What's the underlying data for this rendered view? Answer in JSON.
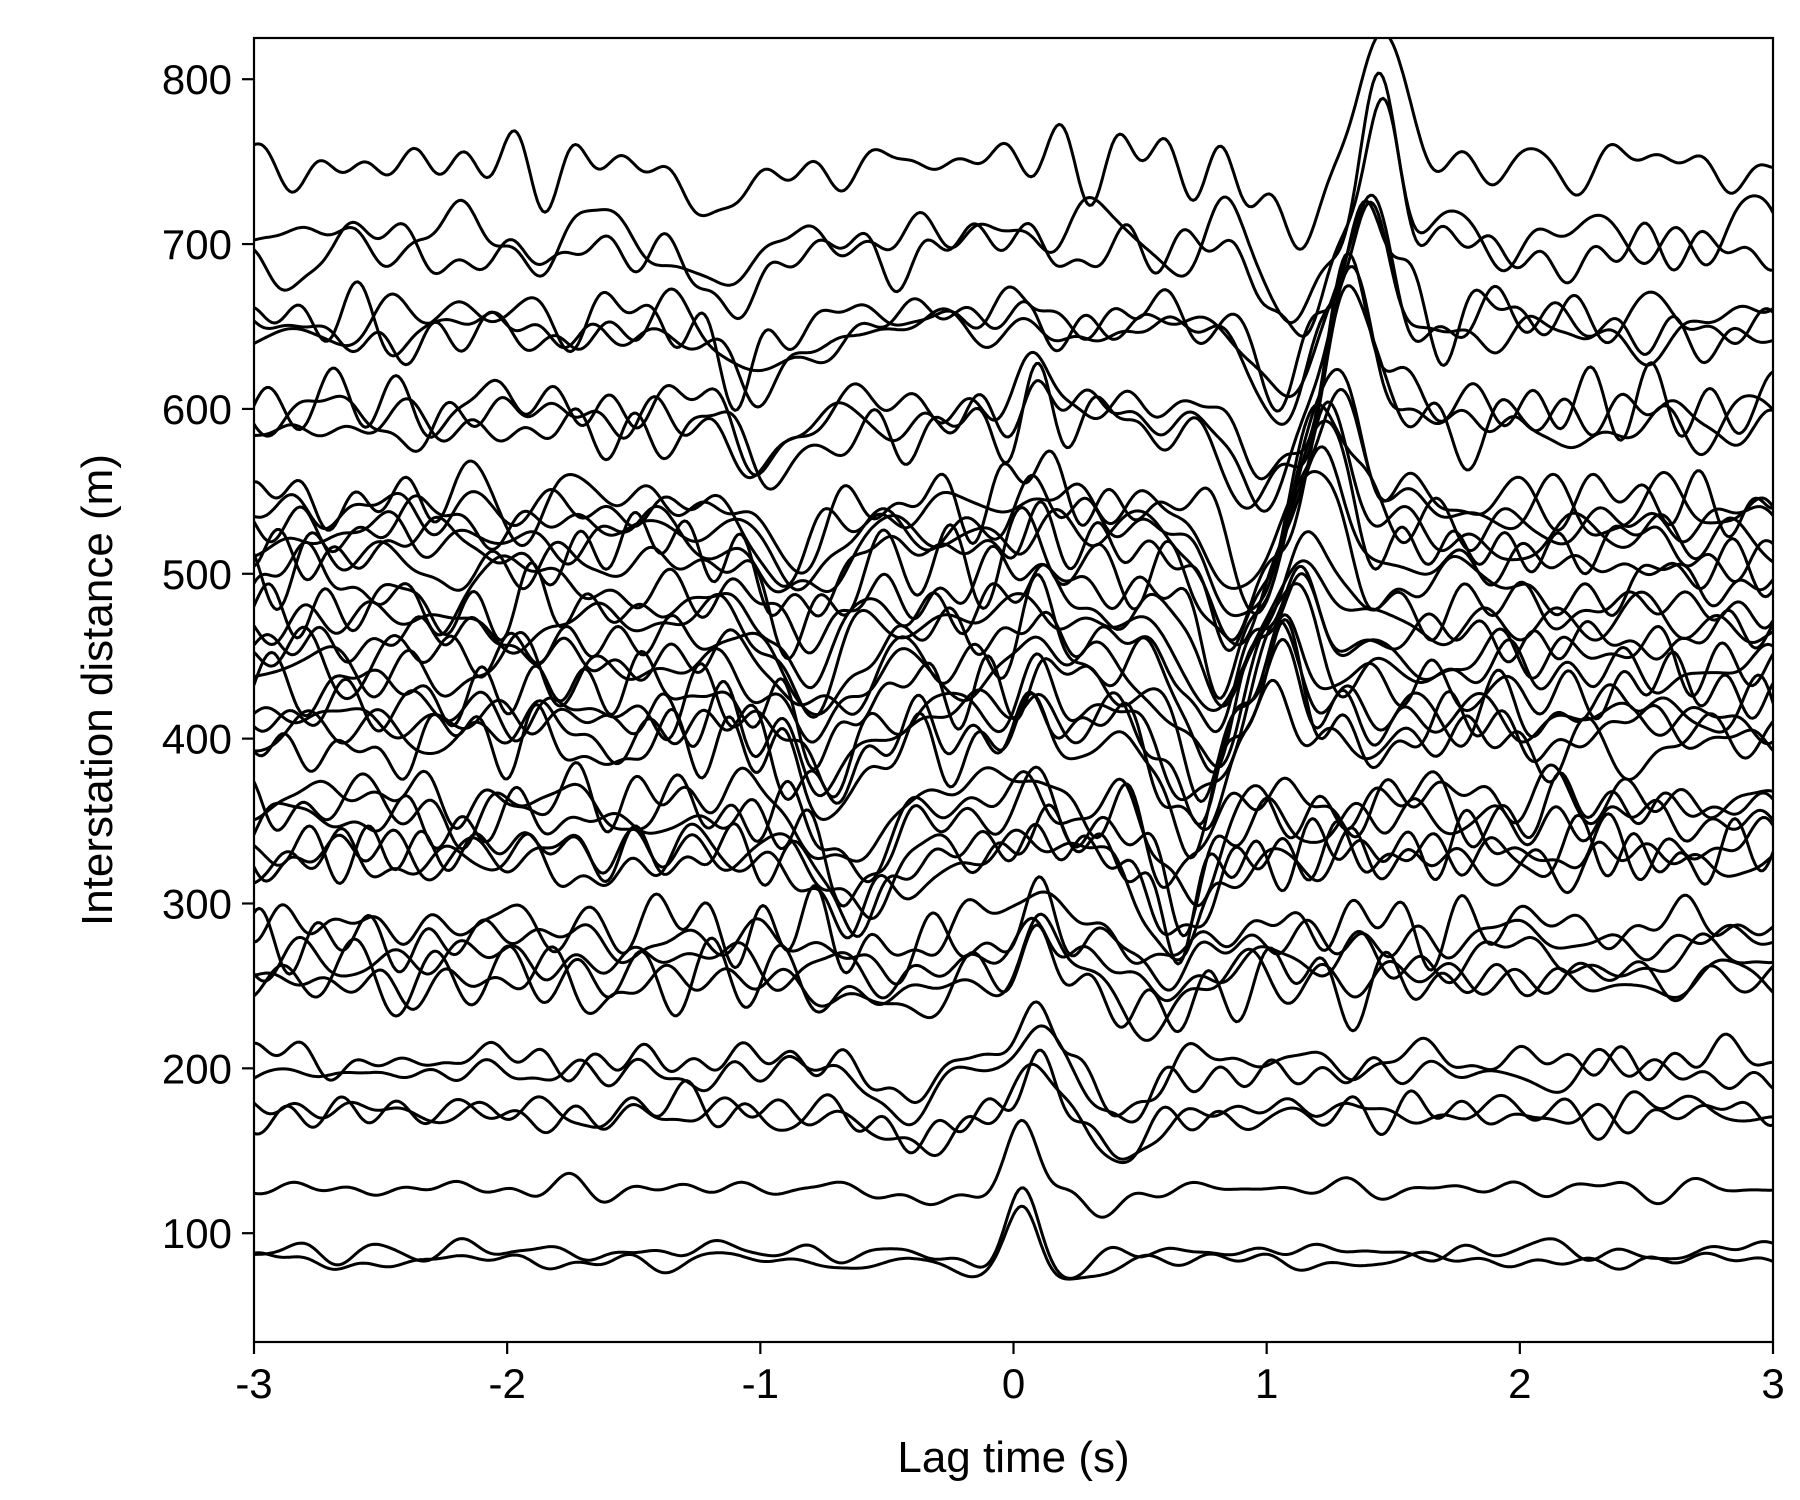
{
  "chart_data": {
    "type": "line",
    "title": "",
    "xlabel": "Lag time (s)",
    "ylabel": "Interstation distance (m)",
    "xlim": [
      -3,
      3
    ],
    "ylim": [
      34,
      825
    ],
    "x_ticks": [
      -3,
      -2,
      -1,
      0,
      1,
      2,
      3
    ],
    "x_tick_labels": [
      "-3",
      "-2",
      "-1",
      "0",
      "1",
      "2",
      "3"
    ],
    "y_ticks": [
      100,
      200,
      300,
      400,
      500,
      600,
      700,
      800
    ],
    "y_tick_labels": [
      "100",
      "200",
      "300",
      "400",
      "500",
      "600",
      "700",
      "800"
    ],
    "grid": false,
    "legend": "none",
    "line_color": "#000000",
    "description_of_waveforms": "Cross-correlation traces plotted at their interstation distance; a central peak near 0 s and troughs moving outward with distance (moveout about 1.1 s at 640 m on the positive side, about 0.9 s on the negative side).",
    "trace_distances_m": [
      83,
      89,
      127,
      172,
      174,
      197,
      205,
      252,
      255,
      266,
      278,
      287,
      325,
      330,
      333,
      350,
      358,
      364,
      396,
      404,
      412,
      417,
      430,
      441,
      450,
      460,
      470,
      480,
      492,
      505,
      515,
      522,
      530,
      539,
      545,
      588,
      595,
      603,
      645,
      650,
      655,
      695,
      704,
      748
    ],
    "moveout": {
      "positive_lag_trough_s": [
        [
          83,
          0.18
        ],
        [
          127,
          0.32
        ],
        [
          174,
          0.42
        ],
        [
          255,
          0.55
        ],
        [
          330,
          0.65
        ],
        [
          420,
          0.72
        ],
        [
          530,
          0.9
        ],
        [
          600,
          1.0
        ],
        [
          650,
          1.05
        ],
        [
          700,
          1.1
        ]
      ],
      "negative_lag_trough_s": [
        [
          83,
          -0.15
        ],
        [
          174,
          -0.4
        ],
        [
          255,
          -0.5
        ],
        [
          330,
          -0.62
        ],
        [
          420,
          -0.75
        ],
        [
          530,
          -0.85
        ],
        [
          600,
          -0.95
        ],
        [
          700,
          -1.15
        ]
      ]
    }
  }
}
